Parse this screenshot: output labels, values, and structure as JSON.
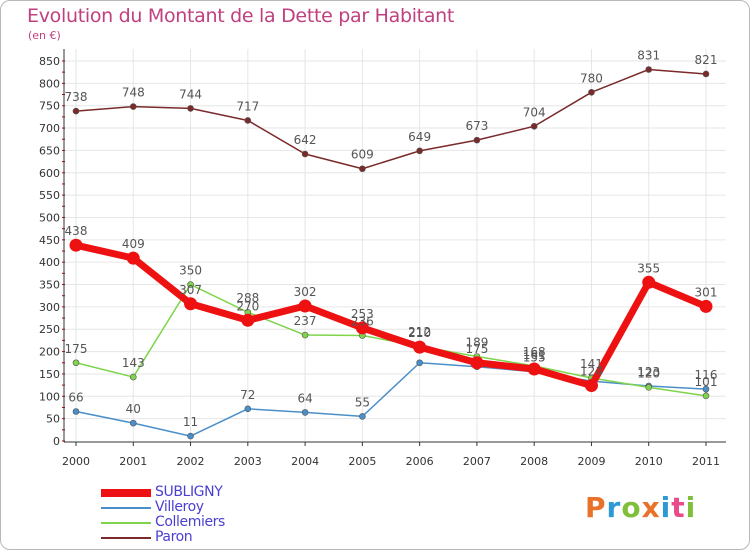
{
  "title": "Evolution du Montant de la Dette par Habitant",
  "subtitle": "(en €)",
  "logo": {
    "text": "Proxiti",
    "letter_colors": [
      "#e8722a",
      "#2d9ad6",
      "#7fbf3a",
      "#e8722a",
      "#2d9ad6",
      "#e84a8a",
      "#7fbf3a"
    ]
  },
  "colors": {
    "title": "#c0407f",
    "axis": "#333333",
    "grid": "#e6e6e6",
    "tick_marks": "#cc0000",
    "legend_text": "#4a3fd0"
  },
  "chart_data": {
    "type": "line",
    "title": "Evolution du Montant de la Dette par Habitant",
    "subtitle": "(en €)",
    "x": [
      "2000",
      "2001",
      "2002",
      "2003",
      "2004",
      "2005",
      "2006",
      "2007",
      "2008",
      "2009",
      "2010",
      "2011"
    ],
    "ylim": [
      0,
      850
    ],
    "yticks": [
      0,
      50,
      100,
      150,
      200,
      250,
      300,
      350,
      400,
      450,
      500,
      550,
      600,
      650,
      700,
      750,
      800,
      850
    ],
    "grid": true,
    "legend_position": "bottom-left",
    "series": [
      {
        "name": "SUBLIGNY",
        "color": "#ee1111",
        "values": [
          438,
          409,
          307,
          270,
          302,
          253,
          210,
          175,
          161,
          124,
          355,
          301
        ],
        "labels": [
          "438",
          "409",
          "307",
          "270",
          "302",
          "253",
          "210",
          "175",
          "161",
          "124",
          "355",
          "301"
        ]
      },
      {
        "name": "Villeroy",
        "color": "#4b8fc9",
        "values": [
          66,
          40,
          11,
          72,
          64,
          55,
          175,
          166,
          155,
          134,
          123,
          116
        ],
        "labels": [
          "66",
          "40",
          "11",
          "72",
          "64",
          "55",
          "",
          "",
          "155",
          "",
          "123",
          "116"
        ]
      },
      {
        "name": "Collemiers",
        "color": "#7ed44a",
        "values": [
          175,
          143,
          350,
          288,
          237,
          236,
          212,
          189,
          168,
          141,
          120,
          101
        ],
        "labels": [
          "175",
          "143",
          "350",
          "288",
          "237",
          "236",
          "212",
          "189",
          "168",
          "141",
          "120",
          "101"
        ]
      },
      {
        "name": "Paron",
        "color": "#7a2a2a",
        "values": [
          738,
          748,
          744,
          717,
          642,
          609,
          649,
          673,
          704,
          780,
          831,
          821
        ],
        "labels": [
          "738",
          "748",
          "744",
          "717",
          "642",
          "609",
          "649",
          "673",
          "704",
          "780",
          "831",
          "821"
        ]
      }
    ]
  }
}
